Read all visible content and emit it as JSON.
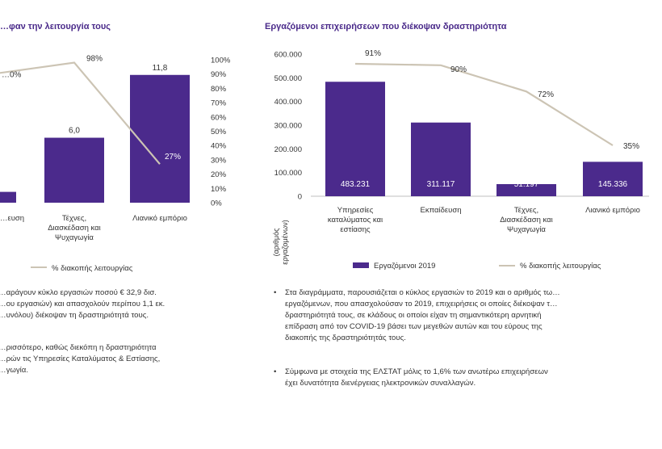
{
  "chart_data": [
    {
      "type": "bar",
      "title": "…φαν την λειτουργία τους",
      "categories": [
        "…ευση",
        "Τέχνες, Διασκέδαση και Ψυχαγωγία",
        "Λιανικό εμπόριο"
      ],
      "cat_lines": [
        [
          "…ευση"
        ],
        [
          "Τέχνες,",
          "Διασκέδαση και",
          "Ψυχαγωγία"
        ],
        [
          "Λιανικό εμπόριο"
        ]
      ],
      "series": [
        {
          "name": "",
          "axis": "left",
          "values": [
            1.0,
            6.0,
            11.8
          ]
        },
        {
          "name": "% διακοπής λειτουργίας",
          "axis": "right",
          "type": "line",
          "values": [
            0.9,
            0.98,
            0.27
          ]
        }
      ],
      "bar_labels": [
        "",
        "6,0",
        "11,8"
      ],
      "line_labels": [
        "…0%",
        "98%",
        "27%"
      ],
      "right_axis_ticks": [
        "0%",
        "10%",
        "20%",
        "30%",
        "40%",
        "50%",
        "60%",
        "70%",
        "80%",
        "90%",
        "100%"
      ],
      "ylim_right": [
        0,
        1
      ],
      "legend": "% διακοπής λειτουργίας"
    },
    {
      "type": "bar",
      "title": "Εργαζόμενοι επιχειρήσεων που διέκοψαν δραστηριότητα",
      "categories": [
        "Υπηρεσίες καταλύματος και εστίασης",
        "Εκπαίδευση",
        "Τέχνες, Διασκέδαση και Ψυχαγωγία",
        "Λιανικό εμπόριο"
      ],
      "cat_lines": [
        [
          "Υπηρεσίες",
          "καταλύματος και",
          "εστίασης"
        ],
        [
          "Εκπαίδευση"
        ],
        [
          "Τέχνες,",
          "Διασκέδαση και",
          "Ψυχαγωγία"
        ],
        [
          "Λιανικό εμπόριο"
        ]
      ],
      "series": [
        {
          "name": "Εργαζόμενοι 2019",
          "axis": "left",
          "values": [
            483231,
            311117,
            51197,
            145336
          ]
        },
        {
          "name": "% διακοπής λειτουργίας",
          "axis": "right",
          "type": "line",
          "values": [
            0.91,
            0.9,
            0.72,
            0.35
          ]
        }
      ],
      "bar_labels": [
        "483.231",
        "311.117",
        "51.197",
        "145.336"
      ],
      "line_labels": [
        "91%",
        "90%",
        "72%",
        "35%"
      ],
      "left_axis_ticks": [
        "0",
        "100.000",
        "200.000",
        "300.000",
        "400.000",
        "500.000",
        "600.000"
      ],
      "ylim": [
        0,
        600000
      ],
      "ylim_right": [
        0,
        1
      ],
      "ylabel": [
        "(αριθμός",
        "εργαζομένων)"
      ],
      "legend": [
        "Εργαζόμενοι 2019",
        "% διακοπής λειτουργίας"
      ]
    }
  ],
  "left_text": {
    "bullet1": [
      "…αράγουν κύκλο εργασιών ποσού € 32,9 δισ.",
      "…ου εργασιών)  και απασχολούν περίπου 1,1 εκ.",
      "…υνόλου) διέκοψαν τη δραστηριότητά τους."
    ],
    "bullet2": [
      "…ρισσότερο, καθώς διεκόπη η δραστηριότητα",
      "…ρών τις Υπηρεσίες Καταλύματος & Εστίασης,",
      "…γωγία."
    ]
  },
  "right_text": {
    "bullet_symbol": "•",
    "bullet1": [
      "Στα διαγράμματα, παρουσιάζεται ο κύκλος εργασιών το 2019 και ο αριθμός τω…",
      "εργαζόμενων, που απασχολούσαν το 2019, επιχειρήσεις οι οποίες διέκοψαν τ…",
      "δραστηριότητά τους, σε κλάδους οι οποίοι είχαν τη σημαντικότερη αρνητική",
      "επίδραση από τον COVID-19 βάσει των μεγεθών αυτών και του εύρους της",
      "διακοπής της δραστηριότητάς τους."
    ],
    "bullet2": [
      "Σύμφωνα με στοιχεία της ΕΛΣΤΑΤ μόλις το 1,6% των ανωτέρω επιχειρήσεων",
      "έχει δυνατότητα διενέργειας ηλεκτρονικών συναλλαγών."
    ]
  },
  "colors": {
    "bar": "#4b2a8c",
    "line": "#ccc4b4",
    "title": "#4a2a8a",
    "text": "#333333",
    "axis": "#bfbfbf"
  }
}
